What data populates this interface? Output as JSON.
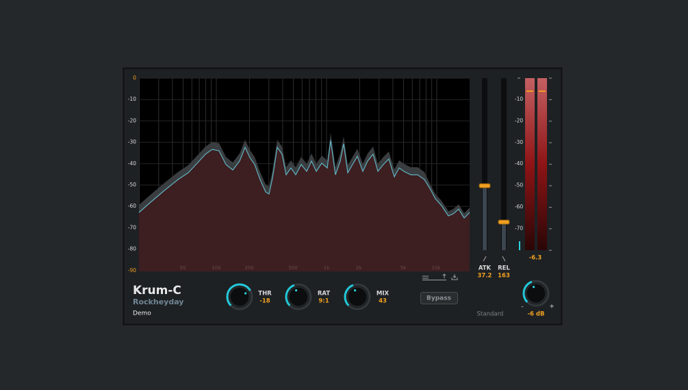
{
  "plugin": {
    "name": "Krum-C",
    "vendor": "Rockheyday",
    "license": "Demo"
  },
  "spectrum": {
    "db_labels": [
      "0",
      "-10",
      "-20",
      "-30",
      "-40",
      "-50",
      "-60",
      "-70",
      "-80",
      "-90"
    ],
    "freq_labels": [
      "50",
      "100",
      "200",
      "500",
      "1k",
      "2k",
      "5k",
      "10k"
    ]
  },
  "controls": {
    "threshold": {
      "label": "THR",
      "value": "-18"
    },
    "ratio": {
      "label": "RAT",
      "value": "9:1"
    },
    "mix": {
      "label": "MIX",
      "value": "43"
    },
    "bypass": "Bypass",
    "mode": "Standard",
    "attack": {
      "label": "ATK",
      "value": "37.2"
    },
    "release": {
      "label": "REL",
      "value": "163"
    }
  },
  "meter": {
    "scale": [
      "-10",
      "-20",
      "-30",
      "-40",
      "-50",
      "-60",
      "-70"
    ],
    "peak": "-6.3"
  },
  "output": {
    "min": "-",
    "max": "+",
    "value": "-6 dB"
  }
}
